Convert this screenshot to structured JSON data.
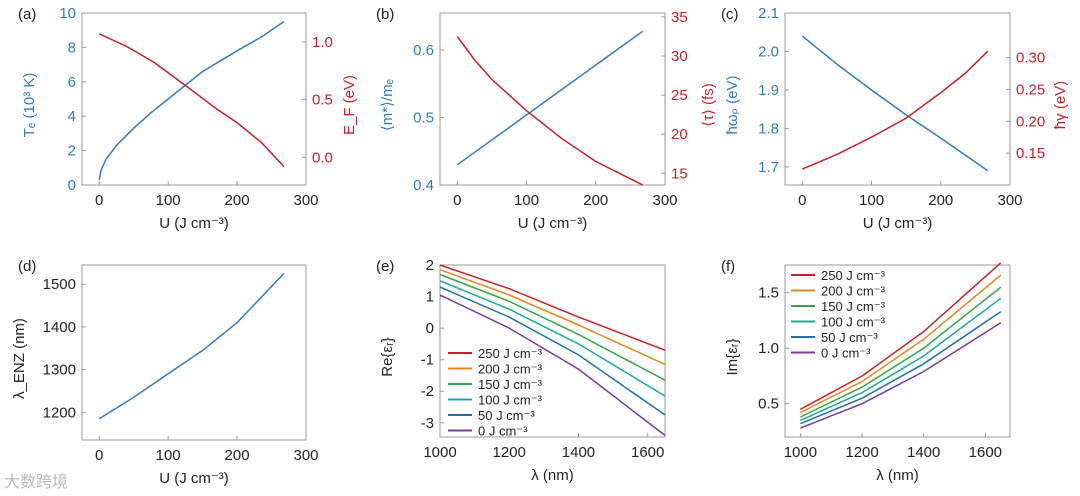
{
  "colors": {
    "blue": "#2f7fb5",
    "red": "#c8202a",
    "axis": "#999999"
  },
  "watermark": "大数跨境",
  "chart_data": [
    {
      "id": "a",
      "type": "line",
      "panel_label": "(a)",
      "xlabel": "U (J cm⁻³)",
      "xlim": [
        -25,
        300
      ],
      "xticks": [
        0,
        100,
        200,
        300
      ],
      "ylabel": "Tₑ (10³ K)",
      "ylim": [
        0,
        10
      ],
      "yticks": [
        0,
        2,
        4,
        6,
        8,
        10
      ],
      "y2label": "E_F (eV)",
      "y2lim": [
        -0.24,
        1.25
      ],
      "y2ticks": [
        "0.0",
        "0.5",
        "1.0"
      ],
      "series": [
        {
          "name": "Te",
          "axis": "left",
          "color": "#2f7fb5",
          "x": [
            0,
            3,
            10,
            25,
            50,
            75,
            100,
            125,
            150,
            175,
            200,
            235,
            268
          ],
          "y": [
            0.3,
            0.9,
            1.5,
            2.3,
            3.3,
            4.2,
            5.0,
            5.8,
            6.6,
            7.2,
            7.8,
            8.6,
            9.5
          ]
        },
        {
          "name": "EF",
          "axis": "right",
          "color": "#c8202a",
          "x": [
            0,
            40,
            80,
            130,
            170,
            200,
            235,
            268
          ],
          "y": [
            1.07,
            0.96,
            0.82,
            0.6,
            0.42,
            0.3,
            0.13,
            -0.08
          ]
        }
      ]
    },
    {
      "id": "b",
      "type": "line",
      "panel_label": "(b)",
      "xlabel": "U (J cm⁻³)",
      "xlim": [
        -25,
        300
      ],
      "xticks": [
        0,
        100,
        200,
        300
      ],
      "ylabel": "⟨m*⟩/mₑ",
      "ylim": [
        0.4,
        0.655
      ],
      "yticks": [
        "0.4",
        "0.5",
        "0.6"
      ],
      "y2label": "⟨τ⟩ (fs)",
      "y2lim": [
        13.5,
        35.5
      ],
      "y2ticks": [
        15,
        20,
        25,
        30,
        35
      ],
      "series": [
        {
          "name": "m*",
          "axis": "left",
          "color": "#2f7fb5",
          "x": [
            0,
            268
          ],
          "y": [
            0.43,
            0.628
          ]
        },
        {
          "name": "tau",
          "axis": "right",
          "color": "#c8202a",
          "x": [
            0,
            25,
            50,
            100,
            150,
            200,
            268
          ],
          "y": [
            32.5,
            29.5,
            27,
            23,
            19.5,
            16.5,
            13.5
          ]
        }
      ]
    },
    {
      "id": "c",
      "type": "line",
      "panel_label": "(c)",
      "xlabel": "U (J cm⁻³)",
      "xlim": [
        -25,
        300
      ],
      "xticks": [
        0,
        100,
        200,
        300
      ],
      "ylabel": "ħωₚ (eV)",
      "ylim": [
        1.653,
        2.1
      ],
      "yticks": [
        "1.7",
        "1.8",
        "1.9",
        "2.0",
        "2.1"
      ],
      "y2label": "ħγ (eV)",
      "y2lim": [
        0.1,
        0.37
      ],
      "y2ticks": [
        "0.15",
        "0.20",
        "0.25",
        "0.30"
      ],
      "series": [
        {
          "name": "wp",
          "axis": "left",
          "color": "#2f7fb5",
          "x": [
            0,
            50,
            100,
            150,
            200,
            268
          ],
          "y": [
            2.04,
            1.967,
            1.9,
            1.835,
            1.775,
            1.69
          ]
        },
        {
          "name": "gamma",
          "axis": "right",
          "color": "#c8202a",
          "x": [
            0,
            50,
            100,
            150,
            200,
            235,
            268
          ],
          "y": [
            0.125,
            0.148,
            0.175,
            0.205,
            0.245,
            0.275,
            0.31
          ]
        }
      ]
    },
    {
      "id": "d",
      "type": "line",
      "panel_label": "(d)",
      "xlabel": "U (J cm⁻³)",
      "xlim": [
        -25,
        300
      ],
      "xticks": [
        0,
        100,
        200,
        300
      ],
      "ylabel": "λ_ENZ (nm)",
      "ylim": [
        1135,
        1545
      ],
      "yticks": [
        1200,
        1300,
        1400,
        1500
      ],
      "series": [
        {
          "name": "lambda",
          "axis": "left",
          "color": "#2f7fb5",
          "x": [
            0,
            50,
            100,
            150,
            200,
            268
          ],
          "y": [
            1185,
            1235,
            1290,
            1345,
            1410,
            1525
          ]
        }
      ]
    },
    {
      "id": "e",
      "type": "line",
      "panel_label": "(e)",
      "xlabel": "λ (nm)",
      "xlim": [
        1000,
        1650
      ],
      "xticks": [
        1000,
        1200,
        1400,
        1600
      ],
      "ylabel": "Re{εᵣ}",
      "ylim": [
        -3.45,
        2.0
      ],
      "yticks": [
        -3,
        -2,
        -1,
        0,
        1,
        2
      ],
      "legend": "bottom-left",
      "series": [
        {
          "name": "250 J cm⁻³",
          "color": "#c8202a",
          "x": [
            1000,
            1200,
            1400,
            1650
          ],
          "y": [
            2.0,
            1.25,
            0.35,
            -0.7
          ]
        },
        {
          "name": "200 J cm⁻³",
          "color": "#e08a1e",
          "x": [
            1000,
            1200,
            1400,
            1650
          ],
          "y": [
            1.85,
            1.05,
            0.1,
            -1.15
          ]
        },
        {
          "name": "150 J cm⁻³",
          "color": "#3aa04a",
          "x": [
            1000,
            1200,
            1400,
            1650
          ],
          "y": [
            1.7,
            0.85,
            -0.2,
            -1.65
          ]
        },
        {
          "name": "100 J cm⁻³",
          "color": "#1aa89a",
          "x": [
            1000,
            1200,
            1400,
            1650
          ],
          "y": [
            1.5,
            0.6,
            -0.5,
            -2.15
          ]
        },
        {
          "name": "50 J cm⁻³",
          "color": "#2070b0",
          "x": [
            1000,
            1200,
            1400,
            1650
          ],
          "y": [
            1.3,
            0.35,
            -0.85,
            -2.75
          ]
        },
        {
          "name": "0 J cm⁻³",
          "color": "#7a3aa0",
          "x": [
            1000,
            1200,
            1400,
            1650
          ],
          "y": [
            1.05,
            0.0,
            -1.3,
            -3.4
          ]
        }
      ]
    },
    {
      "id": "f",
      "type": "line",
      "panel_label": "(f)",
      "xlabel": "λ (nm)",
      "xlim": [
        950,
        1680
      ],
      "xticks": [
        1000,
        1200,
        1400,
        1600
      ],
      "ylabel": "Im{εᵣ}",
      "ylim": [
        0.2,
        1.75
      ],
      "yticks": [
        "0.5",
        "1.0",
        "1.5"
      ],
      "legend": "top-left",
      "series": [
        {
          "name": "250 J cm⁻³",
          "color": "#c8202a",
          "x": [
            1000,
            1200,
            1400,
            1650
          ],
          "y": [
            0.45,
            0.75,
            1.15,
            1.77
          ]
        },
        {
          "name": "200 J cm⁻³",
          "color": "#e08a1e",
          "x": [
            1000,
            1200,
            1400,
            1650
          ],
          "y": [
            0.42,
            0.7,
            1.08,
            1.66
          ]
        },
        {
          "name": "150 J cm⁻³",
          "color": "#3aa04a",
          "x": [
            1000,
            1200,
            1400,
            1650
          ],
          "y": [
            0.38,
            0.65,
            1.0,
            1.55
          ]
        },
        {
          "name": "100 J cm⁻³",
          "color": "#1aa89a",
          "x": [
            1000,
            1200,
            1400,
            1650
          ],
          "y": [
            0.35,
            0.6,
            0.93,
            1.45
          ]
        },
        {
          "name": "50 J cm⁻³",
          "color": "#2070b0",
          "x": [
            1000,
            1200,
            1400,
            1650
          ],
          "y": [
            0.32,
            0.55,
            0.86,
            1.33
          ]
        },
        {
          "name": "0 J cm⁻³",
          "color": "#7a3aa0",
          "x": [
            1000,
            1200,
            1400,
            1650
          ],
          "y": [
            0.28,
            0.5,
            0.79,
            1.23
          ]
        }
      ]
    }
  ]
}
